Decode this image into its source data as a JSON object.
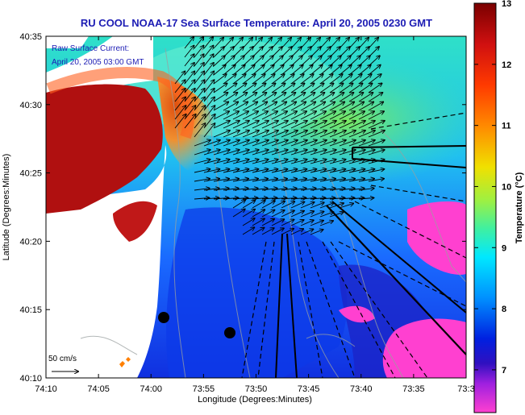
{
  "title": "RU COOL  NOAA-17 Sea Surface Temperature:  April 20, 2005 0230 GMT",
  "xlabel": "Longitude (Degrees:Minutes)",
  "ylabel": "Latitude (Degrees:Minutes)",
  "colorbar_label": "Temperature (°C)",
  "overlay_text": {
    "line1": "Raw Surface Current:",
    "line2": "April 20, 2005 03:00 GMT"
  },
  "scale_label": "50 cm/s",
  "x_ticks": [
    "74:10",
    "74:05",
    "74:00",
    "73:55",
    "73:50",
    "73:45",
    "73:40",
    "73:35",
    "73:3"
  ],
  "y_ticks": [
    "40:35",
    "40:30",
    "40:25",
    "40:20",
    "40:15",
    "40:10"
  ],
  "colorbar_ticks": [
    "13",
    "12",
    "11",
    "10",
    "9",
    "8",
    "7"
  ],
  "colors": {
    "title": "#1c1cb4",
    "land": "#ffffff",
    "sst_warm": "#8b0000",
    "sst_cool": "#0018c8",
    "sst_coldest": "#ff33cc"
  }
}
